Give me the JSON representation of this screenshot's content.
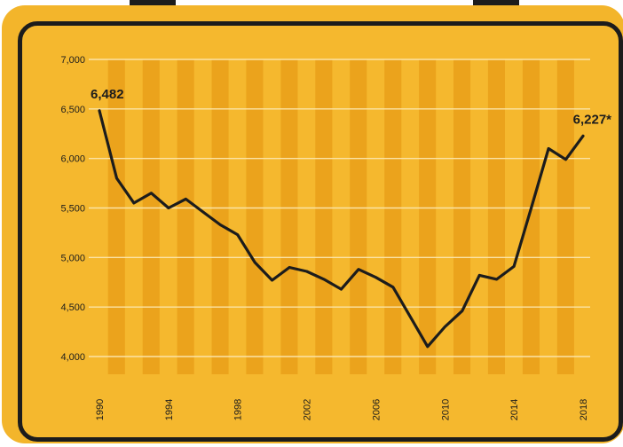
{
  "colors": {
    "case": "#f3b52b",
    "panel": "#f5b82e",
    "stripe": "#eba31c",
    "frame": "#1c1c1c",
    "line": "#1c1c1c",
    "grid": "#fbe3a6"
  },
  "chart_data": {
    "type": "line",
    "title": "",
    "xlabel": "",
    "ylabel": "",
    "x": [
      1990,
      1991,
      1992,
      1993,
      1994,
      1995,
      1996,
      1997,
      1998,
      1999,
      2000,
      2001,
      2002,
      2003,
      2004,
      2005,
      2006,
      2007,
      2008,
      2009,
      2010,
      2011,
      2012,
      2013,
      2014,
      2015,
      2016,
      2017,
      2018
    ],
    "series": [
      {
        "values": [
          6482,
          5800,
          5550,
          5650,
          5500,
          5590,
          5460,
          5330,
          5230,
          4950,
          4770,
          4900,
          4860,
          4780,
          4680,
          4880,
          4800,
          4700,
          4400,
          4100,
          4300,
          4460,
          4820,
          4780,
          4910,
          5500,
          6100,
          5990,
          6227
        ]
      }
    ],
    "ylim": [
      4000,
      7000
    ],
    "xlim": [
      1990,
      2018
    ],
    "yticks": [
      "4,000",
      "4,500",
      "5,000",
      "5,500",
      "6,000",
      "6,500",
      "7,000"
    ],
    "ytick_values": [
      4000,
      4500,
      5000,
      5500,
      6000,
      6500,
      7000
    ],
    "xticks": [
      "1990",
      "1994",
      "1998",
      "2002",
      "2006",
      "2010",
      "2014",
      "2018"
    ],
    "xtick_values": [
      1990,
      1994,
      1998,
      2002,
      2006,
      2010,
      2014,
      2018
    ],
    "annotations": [
      {
        "text": "6,482",
        "x": 1990,
        "y": 6482
      },
      {
        "text": "6,227*",
        "x": 2018,
        "y": 6227
      }
    ],
    "grid": true,
    "legend": "none"
  }
}
